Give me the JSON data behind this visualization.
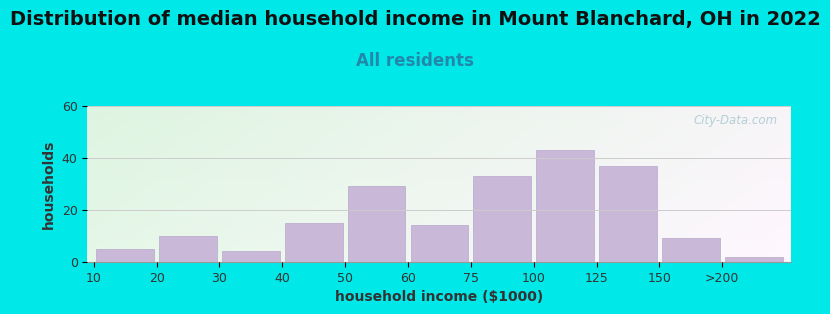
{
  "title": "Distribution of median household income in Mount Blanchard, OH in 2022",
  "subtitle": "All residents",
  "xlabel": "household income ($1000)",
  "ylabel": "households",
  "tick_labels": [
    "10",
    "20",
    "30",
    "40",
    "50",
    "60",
    "75",
    "100",
    "125",
    "150",
    ">200"
  ],
  "tick_positions": [
    0,
    1,
    2,
    3,
    4,
    5,
    6,
    7,
    8,
    9,
    10
  ],
  "bar_values": [
    5,
    10,
    4,
    15,
    29,
    14,
    33,
    43,
    37,
    9,
    2
  ],
  "bar_left_edges": [
    0,
    1,
    2,
    3,
    4,
    5,
    6,
    7,
    8,
    9,
    10
  ],
  "bar_widths": [
    1,
    1,
    1,
    1,
    1,
    1,
    1,
    1,
    1,
    1,
    1
  ],
  "bar_color": "#c9b8d8",
  "bar_edge_color": "#b8a8cc",
  "ylim": [
    0,
    60
  ],
  "yticks": [
    0,
    20,
    40,
    60
  ],
  "xlim": [
    -0.1,
    11.1
  ],
  "background_outer": "#00e8e8",
  "title_fontsize": 14,
  "subtitle_fontsize": 12,
  "subtitle_color": "#2288aa",
  "axis_label_fontsize": 10,
  "tick_fontsize": 9,
  "ytick_fontsize": 9,
  "watermark_text": "City-Data.com",
  "watermark_color": "#aac8d4",
  "title_color": "#111111",
  "grid_color": "#cccccc"
}
